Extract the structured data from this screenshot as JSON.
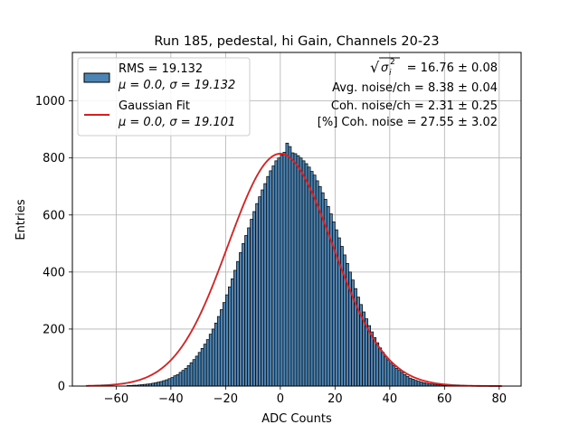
{
  "chart_data": {
    "type": "bar",
    "title": "Run 185, pedestal, hi Gain, Channels 20-23",
    "xlabel": "ADC Counts",
    "ylabel": "Entries",
    "xlim": [
      -76,
      88
    ],
    "ylim": [
      0,
      1170
    ],
    "xticks": [
      -60,
      -40,
      -20,
      0,
      20,
      40,
      60,
      80
    ],
    "yticks": [
      0,
      200,
      400,
      600,
      800,
      1000
    ],
    "xtick_labels": [
      "−60",
      "−40",
      "−20",
      "0",
      "20",
      "40",
      "60",
      "80"
    ],
    "ytick_labels": [
      "0",
      "200",
      "400",
      "600",
      "800",
      "1000"
    ],
    "grid": true,
    "legend_position": "top-left",
    "histogram": {
      "name": "RMS = 19.132",
      "name_line2": "μ = 0.0, σ = 19.132",
      "color": "#4c84b4",
      "edge_color": "#000000",
      "bin_start": -56,
      "bin_width": 1,
      "counts": [
        2,
        2,
        3,
        3,
        4,
        5,
        6,
        7,
        8,
        10,
        12,
        14,
        16,
        19,
        22,
        26,
        30,
        36,
        40,
        48,
        55,
        62,
        72,
        82,
        93,
        105,
        118,
        132,
        147,
        163,
        182,
        200,
        221,
        244,
        268,
        293,
        320,
        348,
        376,
        406,
        437,
        468,
        500,
        528,
        555,
        585,
        612,
        640,
        664,
        688,
        710,
        735,
        755,
        772,
        790,
        800,
        810,
        820,
        852,
        840,
        818,
        815,
        808,
        800,
        790,
        780,
        768,
        753,
        740,
        720,
        700,
        678,
        655,
        630,
        604,
        576,
        548,
        520,
        490,
        460,
        430,
        400,
        372,
        342,
        312,
        286,
        260,
        236,
        212,
        190,
        170,
        152,
        134,
        118,
        104,
        92,
        80,
        72,
        62,
        55,
        48,
        40,
        34,
        28,
        24,
        20,
        17,
        14,
        12,
        10,
        8,
        7,
        6,
        5,
        4,
        3,
        3,
        2,
        2,
        1
      ]
    },
    "fit": {
      "name": "Gaussian Fit",
      "name_line2": "μ = 0.0, σ = 19.101",
      "color": "#e41a1c",
      "mu": 0.0,
      "sigma": 19.101,
      "amplitude": 815,
      "x_range": [
        -71,
        81
      ]
    },
    "annotations": {
      "sqrt_sigma_value": " = 16.76 ± 0.08",
      "avg_noise": "Avg. noise/ch = 8.38 ± 0.04",
      "coh_noise": "Coh. noise/ch = 2.31 ± 0.25",
      "coh_percent": "[%] Coh. noise = 27.55 ± 3.02"
    },
    "sqrt_symbol": "√",
    "sigma_symbol": "σ",
    "sigma_subscript": "i",
    "sigma_superscript": "2"
  }
}
